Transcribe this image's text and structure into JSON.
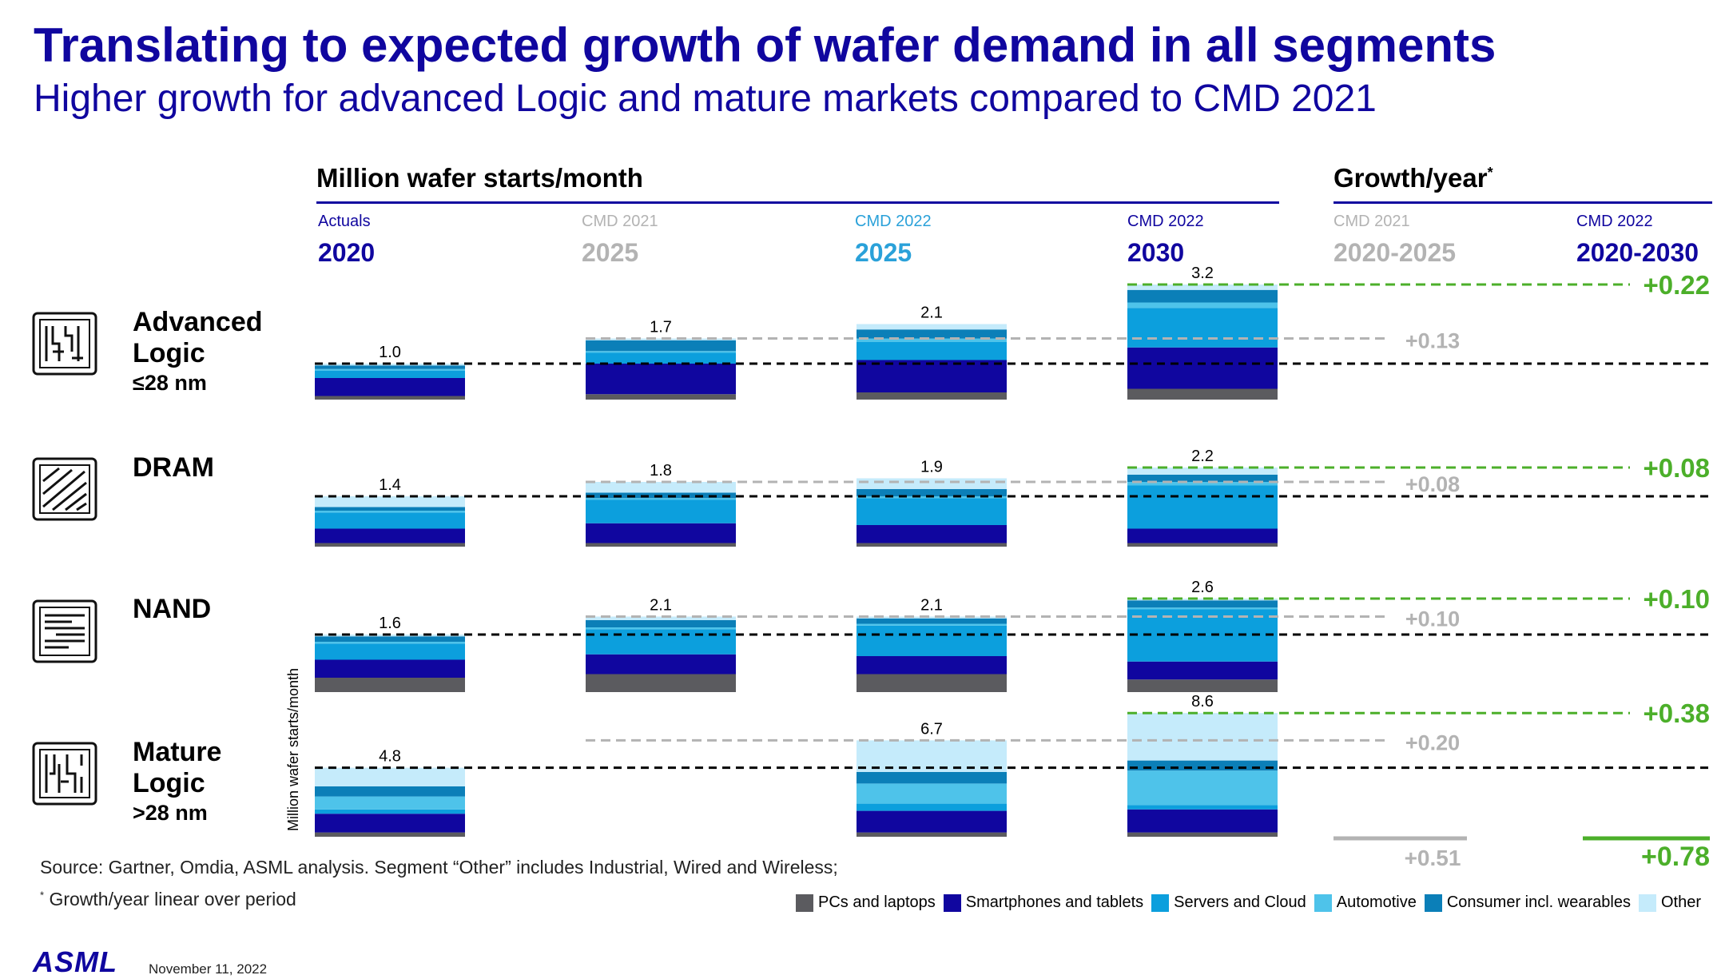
{
  "title": "Translating to expected growth of wafer demand in all segments",
  "subtitle": "Higher growth for advanced Logic and mature markets compared to CMD 2021",
  "header_left": "Million wafer starts/month",
  "header_right": "Growth/year",
  "header_right_mark": "*",
  "columns": [
    {
      "small": "Actuals",
      "big": "2020"
    },
    {
      "small": "CMD 2021",
      "big": "2025"
    },
    {
      "small": "CMD 2022",
      "big": "2025"
    },
    {
      "small": "CMD 2022",
      "big": "2030"
    }
  ],
  "growth_columns": [
    {
      "small": "CMD 2021",
      "big": "2020-2025"
    },
    {
      "small": "CMD 2022",
      "big": "2020-2030"
    }
  ],
  "segments": [
    {
      "name_line1": "Advanced",
      "name_line2": "Logic",
      "sub": "≤28 nm",
      "icon": "advanced-logic-chip-icon"
    },
    {
      "name_line1": "DRAM",
      "name_line2": "",
      "sub": "",
      "icon": "dram-chip-icon"
    },
    {
      "name_line1": "NAND",
      "name_line2": "",
      "sub": "",
      "icon": "nand-chip-icon"
    },
    {
      "name_line1": "Mature",
      "name_line2": "Logic",
      "sub": ">28 nm",
      "icon": "mature-logic-chip-icon"
    }
  ],
  "y_axis_label": "Million wafer starts/month",
  "source": "Source: Gartner, Omdia, ASML analysis. Segment “Other” includes Industrial, Wired and Wireless;",
  "footnote_mark": "*",
  "footnote": "Growth/year linear over period",
  "logo": "ASML",
  "date": "November 11, 2022",
  "colors": {
    "brand": "#10069f",
    "cmd2021": "#b3b3b3",
    "cmd2022": "#2aa1d9",
    "growth_green": "#4caf2a",
    "growth_gray": "#b3b3b3"
  },
  "chart_data": {
    "type": "bar",
    "stacked": true,
    "unit": "Million wafer starts/month",
    "series_names": [
      "PCs and laptops",
      "Smartphones and tablets",
      "Servers and Cloud",
      "Automotive",
      "Consumer incl. wearables",
      "Other"
    ],
    "series_colors": [
      "#5b5b5f",
      "#10069f",
      "#0c9fdd",
      "#4ec3ea",
      "#0b7fb8",
      "#c5ebfb"
    ],
    "categories": [
      "Actuals 2020",
      "CMD 2021 2025",
      "CMD 2022 2025",
      "CMD 2022 2030"
    ],
    "panels": [
      {
        "segment": "Advanced Logic ≤28 nm",
        "totals": [
          "1.0",
          "1.7",
          "2.1",
          "3.2"
        ],
        "stacks": [
          [
            0.1,
            0.5,
            0.2,
            0.05,
            0.1,
            0.05
          ],
          [
            0.15,
            0.85,
            0.3,
            0.05,
            0.3,
            0.05
          ],
          [
            0.2,
            0.9,
            0.5,
            0.1,
            0.25,
            0.15
          ],
          [
            0.3,
            1.15,
            1.1,
            0.15,
            0.35,
            0.15
          ]
        ],
        "growth_cmd2021": "+0.13",
        "growth_cmd2022": "+0.22"
      },
      {
        "segment": "DRAM",
        "totals": [
          "1.4",
          "1.8",
          "1.9",
          "2.2"
        ],
        "stacks": [
          [
            0.1,
            0.4,
            0.45,
            0.05,
            0.1,
            0.3
          ],
          [
            0.1,
            0.55,
            0.65,
            0.05,
            0.15,
            0.3
          ],
          [
            0.1,
            0.5,
            0.75,
            0.05,
            0.2,
            0.3
          ],
          [
            0.1,
            0.4,
            1.2,
            0.1,
            0.2,
            0.2
          ]
        ],
        "growth_cmd2021": "+0.08",
        "growth_cmd2022": "+0.08"
      },
      {
        "segment": "NAND",
        "totals": [
          "1.6",
          "2.1",
          "2.1",
          "2.6"
        ],
        "stacks": [
          [
            0.4,
            0.5,
            0.45,
            0.05,
            0.15,
            0.05
          ],
          [
            0.5,
            0.55,
            0.7,
            0.05,
            0.2,
            0.1
          ],
          [
            0.5,
            0.5,
            0.85,
            0.05,
            0.15,
            0.05
          ],
          [
            0.35,
            0.5,
            1.45,
            0.05,
            0.2,
            0.05
          ]
        ],
        "growth_cmd2021": "+0.10",
        "growth_cmd2022": "+0.10"
      },
      {
        "segment": "Mature Logic >28 nm",
        "totals": [
          "4.8",
          "",
          "6.7",
          "8.6"
        ],
        "stacks": [
          [
            0.3,
            1.3,
            0.3,
            0.9,
            0.7,
            1.3
          ],
          null,
          [
            0.3,
            1.5,
            0.5,
            1.4,
            0.8,
            2.2
          ],
          [
            0.3,
            1.6,
            0.3,
            2.4,
            0.7,
            3.3
          ]
        ],
        "growth_cmd2021": "+0.20",
        "growth_cmd2022": "+0.38"
      }
    ],
    "growth_totals": {
      "cmd2021": "+0.51",
      "cmd2022": "+0.78"
    }
  }
}
